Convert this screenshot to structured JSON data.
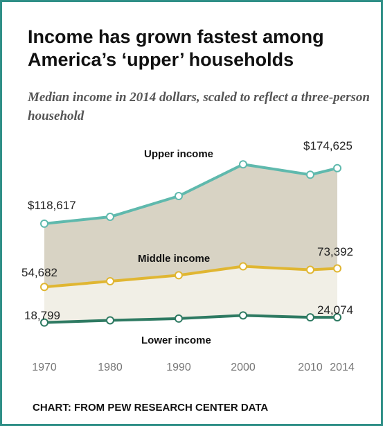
{
  "header": {
    "title": "Income has grown fastest among America’s ‘upper’ households",
    "subtitle": "Median income in 2014 dollars, scaled to reflect a three-person household"
  },
  "footer": {
    "source": "CHART: FROM PEW RESEARCH CENTER DATA"
  },
  "chart_data": {
    "type": "line",
    "title": "Income has grown fastest among America’s ‘upper’ households",
    "subtitle": "Median income in 2014 dollars, scaled to reflect a three-person household",
    "x": [
      1970,
      1980,
      1990,
      2000,
      2010,
      2014
    ],
    "x_tick_labels": [
      "1970",
      "1980",
      "1990",
      "2000",
      "2010",
      "2014"
    ],
    "ylim": [
      0,
      200000
    ],
    "grid": false,
    "legend": "none",
    "series": [
      {
        "name": "Upper income",
        "color": "#5fb9ad",
        "values": [
          118617,
          125500,
          146500,
          178500,
          168000,
          174625
        ],
        "start_label": "$118,617",
        "end_label": "$174,625"
      },
      {
        "name": "Middle income",
        "color": "#e0b632",
        "values": [
          54682,
          60500,
          66500,
          75500,
          72000,
          73392
        ],
        "start_label": "54,682",
        "end_label": "73,392"
      },
      {
        "name": "Lower income",
        "color": "#2e7a62",
        "values": [
          18799,
          21000,
          22800,
          26000,
          24000,
          24074
        ],
        "start_label": "18,799",
        "end_label": "24,074"
      }
    ],
    "fills": {
      "upper_band": "#d8d3c4",
      "middle_band": "#f1efe6"
    }
  }
}
